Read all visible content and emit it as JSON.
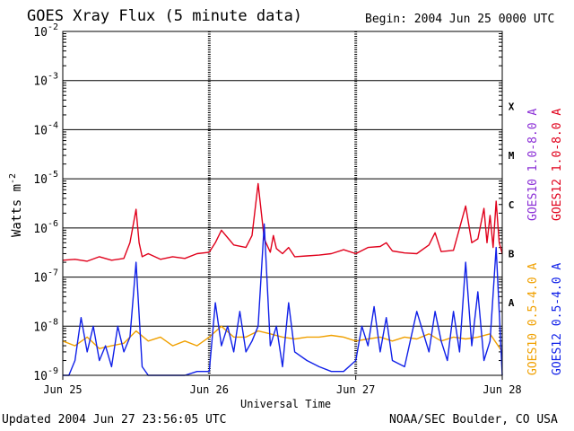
{
  "header": {
    "title": "GOES Xray Flux (5 minute data)",
    "begin": "Begin:  2004 Jun 25 0000 UTC"
  },
  "footer": {
    "updated": "Updated 2004 Jun 27 23:56:05 UTC",
    "credit": "NOAA/SEC Boulder, CO USA"
  },
  "colors": {
    "goes10_long": "#8b2fd6",
    "goes12_long": "#e0001b",
    "goes10_short": "#f0a000",
    "goes12_short": "#1020e8"
  },
  "chart_data": {
    "type": "line",
    "title": "GOES Xray Flux (5 minute data)",
    "xlabel": "Universal Time",
    "ylabel": "Watts m",
    "ylabel_sup": "-2",
    "y_scale": "log",
    "ylim": [
      1e-09,
      0.01
    ],
    "y_ticks": [
      {
        "value": 0.01,
        "base": "10",
        "exp": "-2"
      },
      {
        "value": 0.001,
        "base": "10",
        "exp": "-3"
      },
      {
        "value": 0.0001,
        "base": "10",
        "exp": "-4"
      },
      {
        "value": 1e-05,
        "base": "10",
        "exp": "-5"
      },
      {
        "value": 1e-06,
        "base": "10",
        "exp": "-6"
      },
      {
        "value": 1e-07,
        "base": "10",
        "exp": "-7"
      },
      {
        "value": 1e-08,
        "base": "10",
        "exp": "-8"
      },
      {
        "value": 1e-09,
        "base": "10",
        "exp": "-9"
      }
    ],
    "xlim": [
      "2004-06-25 00:00",
      "2004-06-28 00:00"
    ],
    "x_ticks": [
      {
        "value": "2004-06-25 00:00",
        "label": "Jun 25"
      },
      {
        "value": "2004-06-26 00:00",
        "label": "Jun 26"
      },
      {
        "value": "2004-06-27 00:00",
        "label": "Jun 27"
      },
      {
        "value": "2004-06-28 00:00",
        "label": "Jun 28"
      }
    ],
    "flare_classes": [
      {
        "label": "X",
        "value": 0.0003
      },
      {
        "label": "M",
        "value": 3e-05
      },
      {
        "label": "C",
        "value": 3e-06
      },
      {
        "label": "B",
        "value": 3e-07
      },
      {
        "label": "A",
        "value": 3e-08
      }
    ],
    "legend_placement": "right",
    "series": [
      {
        "name": "GOES10 1.0-8.0 A",
        "color": "#8b2fd6",
        "x": [],
        "y": []
      },
      {
        "name": "GOES12 1.0-8.0 A",
        "color": "#e0001b",
        "x": [
          "2004-06-25 00:00",
          "2004-06-25 02:00",
          "2004-06-25 04:00",
          "2004-06-25 06:00",
          "2004-06-25 08:00",
          "2004-06-25 10:00",
          "2004-06-25 11:00",
          "2004-06-25 12:00",
          "2004-06-25 12:30",
          "2004-06-25 13:00",
          "2004-06-25 14:00",
          "2004-06-25 16:00",
          "2004-06-25 18:00",
          "2004-06-25 20:00",
          "2004-06-25 22:00",
          "2004-06-26 00:00",
          "2004-06-26 01:00",
          "2004-06-26 02:00",
          "2004-06-26 04:00",
          "2004-06-26 06:00",
          "2004-06-26 07:00",
          "2004-06-26 08:00",
          "2004-06-26 09:00",
          "2004-06-26 10:00",
          "2004-06-26 10:30",
          "2004-06-26 11:00",
          "2004-06-26 12:00",
          "2004-06-26 13:00",
          "2004-06-26 14:00",
          "2004-06-26 16:00",
          "2004-06-26 18:00",
          "2004-06-26 20:00",
          "2004-06-26 22:00",
          "2004-06-27 00:00",
          "2004-06-27 02:00",
          "2004-06-27 04:00",
          "2004-06-27 05:00",
          "2004-06-27 06:00",
          "2004-06-27 08:00",
          "2004-06-27 10:00",
          "2004-06-27 12:00",
          "2004-06-27 13:00",
          "2004-06-27 14:00",
          "2004-06-27 16:00",
          "2004-06-27 18:00",
          "2004-06-27 19:00",
          "2004-06-27 20:00",
          "2004-06-27 21:00",
          "2004-06-27 21:30",
          "2004-06-27 22:00",
          "2004-06-27 22:30",
          "2004-06-27 23:00",
          "2004-06-27 23:30",
          "2004-06-28 00:00"
        ],
        "y": [
          2.2e-07,
          2.3e-07,
          2.1e-07,
          2.6e-07,
          2.2e-07,
          2.4e-07,
          5e-07,
          2.4e-06,
          5e-07,
          2.6e-07,
          3e-07,
          2.3e-07,
          2.6e-07,
          2.4e-07,
          3e-07,
          3.2e-07,
          5e-07,
          9e-07,
          4.5e-07,
          4e-07,
          7e-07,
          8e-06,
          6e-07,
          3.2e-07,
          7e-07,
          3.8e-07,
          3e-07,
          4e-07,
          2.6e-07,
          2.7e-07,
          2.8e-07,
          3e-07,
          3.6e-07,
          3e-07,
          4e-07,
          4.2e-07,
          5e-07,
          3.4e-07,
          3.1e-07,
          3e-07,
          4.5e-07,
          8e-07,
          3.3e-07,
          3.5e-07,
          2.8e-06,
          5e-07,
          6e-07,
          2.5e-06,
          5e-07,
          1.8e-06,
          4e-07,
          3.5e-06,
          5e-07,
          3e-07
        ]
      },
      {
        "name": "GOES10 0.5-4.0 A",
        "color": "#f0a000",
        "x": [
          "2004-06-25 00:00",
          "2004-06-25 02:00",
          "2004-06-25 04:00",
          "2004-06-25 06:00",
          "2004-06-25 08:00",
          "2004-06-25 10:00",
          "2004-06-25 12:00",
          "2004-06-25 14:00",
          "2004-06-25 16:00",
          "2004-06-25 18:00",
          "2004-06-25 20:00",
          "2004-06-25 22:00",
          "2004-06-26 00:00",
          "2004-06-26 02:00",
          "2004-06-26 04:00",
          "2004-06-26 06:00",
          "2004-06-26 08:00",
          "2004-06-26 10:00",
          "2004-06-26 12:00",
          "2004-06-26 14:00",
          "2004-06-26 16:00",
          "2004-06-26 18:00",
          "2004-06-26 20:00",
          "2004-06-26 22:00",
          "2004-06-27 00:00",
          "2004-06-27 02:00",
          "2004-06-27 04:00",
          "2004-06-27 06:00",
          "2004-06-27 08:00",
          "2004-06-27 10:00",
          "2004-06-27 12:00",
          "2004-06-27 14:00",
          "2004-06-27 16:00",
          "2004-06-27 18:00",
          "2004-06-27 20:00",
          "2004-06-27 22:00",
          "2004-06-28 00:00"
        ],
        "y": [
          5e-09,
          4e-09,
          6e-09,
          3.5e-09,
          4e-09,
          4.5e-09,
          8e-09,
          5e-09,
          6e-09,
          4e-09,
          5e-09,
          4e-09,
          6e-09,
          1e-08,
          6e-09,
          6e-09,
          8e-09,
          7e-09,
          6e-09,
          5.5e-09,
          6e-09,
          6e-09,
          6.5e-09,
          6e-09,
          5e-09,
          5.5e-09,
          6e-09,
          5e-09,
          6e-09,
          5.5e-09,
          7e-09,
          5e-09,
          6e-09,
          5.5e-09,
          6e-09,
          7e-09,
          3e-09
        ]
      },
      {
        "name": "GOES12 0.5-4.0 A",
        "color": "#1020e8",
        "x": [
          "2004-06-25 00:00",
          "2004-06-25 01:00",
          "2004-06-25 02:00",
          "2004-06-25 03:00",
          "2004-06-25 04:00",
          "2004-06-25 05:00",
          "2004-06-25 06:00",
          "2004-06-25 07:00",
          "2004-06-25 08:00",
          "2004-06-25 09:00",
          "2004-06-25 10:00",
          "2004-06-25 11:00",
          "2004-06-25 12:00",
          "2004-06-25 13:00",
          "2004-06-25 14:00",
          "2004-06-25 15:00",
          "2004-06-25 16:00",
          "2004-06-25 18:00",
          "2004-06-25 20:00",
          "2004-06-25 22:00",
          "2004-06-26 00:00",
          "2004-06-26 01:00",
          "2004-06-26 02:00",
          "2004-06-26 03:00",
          "2004-06-26 04:00",
          "2004-06-26 05:00",
          "2004-06-26 06:00",
          "2004-06-26 07:00",
          "2004-06-26 08:00",
          "2004-06-26 09:00",
          "2004-06-26 10:00",
          "2004-06-26 11:00",
          "2004-06-26 12:00",
          "2004-06-26 13:00",
          "2004-06-26 14:00",
          "2004-06-26 16:00",
          "2004-06-26 18:00",
          "2004-06-26 20:00",
          "2004-06-26 22:00",
          "2004-06-27 00:00",
          "2004-06-27 01:00",
          "2004-06-27 02:00",
          "2004-06-27 03:00",
          "2004-06-27 04:00",
          "2004-06-27 05:00",
          "2004-06-27 06:00",
          "2004-06-27 08:00",
          "2004-06-27 10:00",
          "2004-06-27 12:00",
          "2004-06-27 13:00",
          "2004-06-27 14:00",
          "2004-06-27 15:00",
          "2004-06-27 16:00",
          "2004-06-27 17:00",
          "2004-06-27 18:00",
          "2004-06-27 19:00",
          "2004-06-27 20:00",
          "2004-06-27 21:00",
          "2004-06-27 22:00",
          "2004-06-27 23:00",
          "2004-06-28 00:00"
        ],
        "y": [
          1e-09,
          1e-09,
          2e-09,
          1.5e-08,
          3e-09,
          1e-08,
          2e-09,
          4e-09,
          1.5e-09,
          1e-08,
          3e-09,
          6e-09,
          2e-07,
          1.5e-09,
          1e-09,
          1e-09,
          1e-09,
          1e-09,
          1e-09,
          1.2e-09,
          1.2e-09,
          3e-08,
          4e-09,
          1e-08,
          3e-09,
          2e-08,
          3e-09,
          5e-09,
          1e-08,
          1.2e-06,
          4e-09,
          1e-08,
          1.5e-09,
          3e-08,
          3e-09,
          2e-09,
          1.5e-09,
          1.2e-09,
          1.2e-09,
          2e-09,
          1e-08,
          4e-09,
          2.5e-08,
          3e-09,
          1.5e-08,
          2e-09,
          1.5e-09,
          2e-08,
          3e-09,
          2e-08,
          5e-09,
          2e-09,
          2e-08,
          3e-09,
          2e-07,
          4e-09,
          5e-08,
          2e-09,
          5e-09,
          4e-07,
          1e-09
        ]
      }
    ]
  }
}
